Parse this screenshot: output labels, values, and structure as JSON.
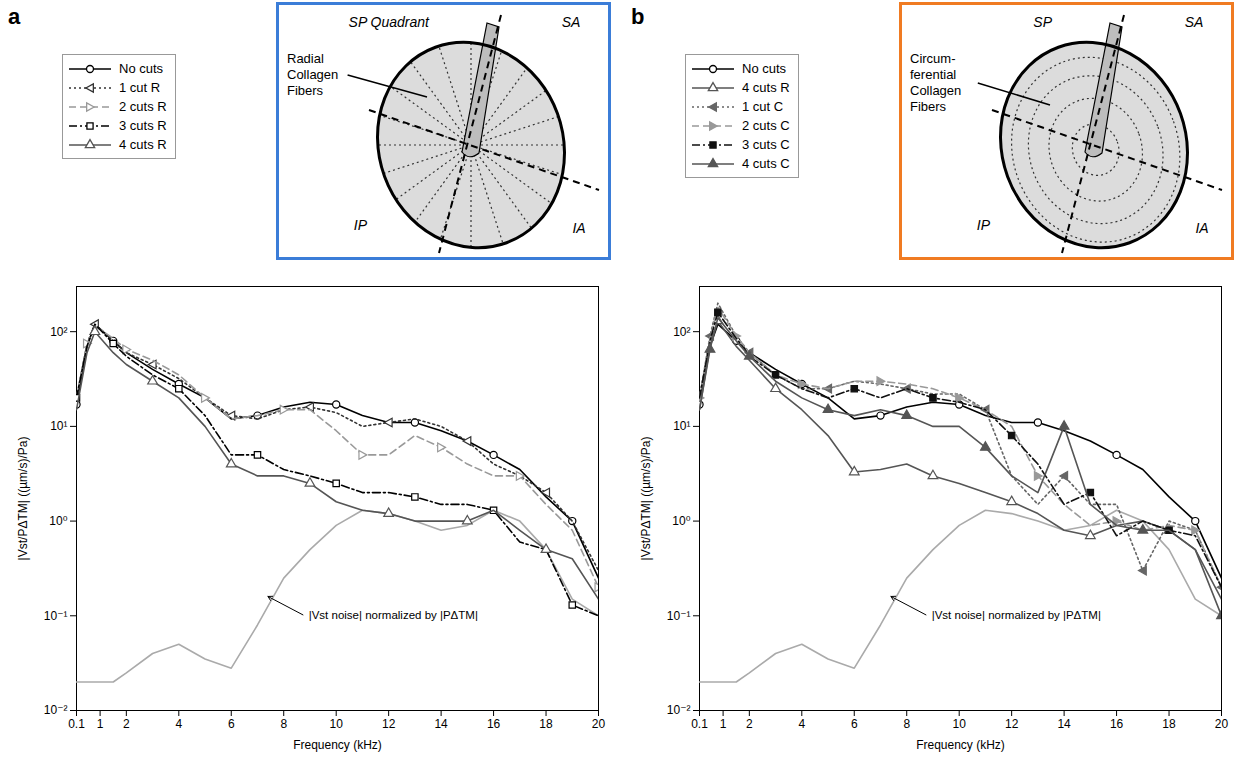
{
  "chart_data": [
    {
      "type": "line",
      "panel_label": "a",
      "color": "#3b7dd8",
      "log": "y",
      "grid": false,
      "legend": "top left",
      "xlabel": "Frequency (kHz)",
      "ylabel": "|Vst/PΔTM| ((µm/s)/Pa)",
      "xlim": [
        0.1,
        20
      ],
      "xticks": [
        0.1,
        1,
        2,
        4,
        6,
        8,
        10,
        12,
        14,
        16,
        18,
        20
      ],
      "ylim": [
        0.01,
        300
      ],
      "yticks": [
        {
          "value": 0.01,
          "label": "10⁻²"
        },
        {
          "value": 0.1,
          "label": "10⁻¹"
        },
        {
          "value": 1,
          "label": "10⁰"
        },
        {
          "value": 10,
          "label": "10¹"
        },
        {
          "value": 100,
          "label": "10²"
        }
      ],
      "x": [
        0.1,
        0.5,
        0.8,
        1.5,
        2,
        3,
        4,
        5,
        6,
        7,
        8,
        9,
        10,
        11,
        12,
        13,
        14,
        15,
        16,
        17,
        18,
        19,
        20
      ],
      "series": [
        {
          "name": "No cuts",
          "color": "#000000",
          "marker": "circle",
          "line_style": "solid",
          "values": [
            17,
            70,
            120,
            80,
            60,
            40,
            28,
            20,
            12,
            13,
            16,
            18,
            17,
            13,
            11,
            11,
            9,
            7,
            5,
            3.5,
            1.8,
            1.0,
            0.25
          ]
        },
        {
          "name": "1 cut R",
          "color": "#333333",
          "marker": "triangle-left",
          "line_style": "dotted",
          "values": [
            20,
            75,
            120,
            80,
            60,
            45,
            32,
            20,
            13,
            12,
            15,
            16,
            14,
            10,
            11,
            12,
            10,
            7,
            4,
            3,
            2,
            1.0,
            0.3
          ]
        },
        {
          "name": "2 cuts R",
          "color": "#999999",
          "marker": "triangle-right",
          "line_style": "dashed",
          "values": [
            20,
            75,
            115,
            85,
            65,
            50,
            35,
            20,
            12,
            13,
            15,
            15,
            9,
            5,
            5,
            8,
            6,
            4,
            3,
            3,
            1.5,
            0.8,
            0.2
          ]
        },
        {
          "name": "3 cuts R",
          "color": "#000000",
          "marker": "square",
          "line_style": "dashdot",
          "values": [
            20,
            70,
            120,
            75,
            55,
            35,
            25,
            13,
            5,
            5,
            3.5,
            3,
            2.5,
            2,
            2,
            1.8,
            1.5,
            1.5,
            1.3,
            0.6,
            0.5,
            0.13,
            0.1
          ]
        },
        {
          "name": "4 cuts R",
          "color": "#555555",
          "marker": "triangle",
          "line_style": "solid",
          "values": [
            15,
            60,
            100,
            60,
            45,
            30,
            20,
            10,
            4,
            3,
            3,
            2.5,
            1.6,
            1.3,
            1.2,
            1,
            1,
            1,
            1.3,
            0.8,
            0.5,
            0.4,
            0.15
          ]
        }
      ],
      "noise": {
        "color": "#aaaaaa",
        "values": [
          0.02,
          0.02,
          0.02,
          0.02,
          0.025,
          0.04,
          0.05,
          0.035,
          0.028,
          0.08,
          0.25,
          0.5,
          0.9,
          1.3,
          1.2,
          1.0,
          0.8,
          0.9,
          1.3,
          1.0,
          0.5,
          0.15,
          0.1
        ]
      },
      "annotation": {
        "text": "|Vst noise| normalized by |PΔTM|",
        "x": 8.8,
        "y": 0.1,
        "x_to": 7.4,
        "y_to": 0.16
      },
      "diagram": {
        "type": "radial",
        "quadrant_labels": [
          "SP Quadrant",
          "SA",
          "IP",
          "IA"
        ],
        "fiber_label": [
          "Radial",
          "Collagen",
          "Fibers"
        ]
      }
    },
    {
      "type": "line",
      "panel_label": "b",
      "color": "#f07b22",
      "log": "y",
      "grid": false,
      "legend": "top left",
      "xlabel": "Frequency (kHz)",
      "ylabel": "|Vst/PΔTM| ((µm/s)/Pa)",
      "xlim": [
        0.1,
        20
      ],
      "xticks": [
        0.1,
        1,
        2,
        4,
        6,
        8,
        10,
        12,
        14,
        16,
        18,
        20
      ],
      "ylim": [
        0.01,
        300
      ],
      "yticks": [
        {
          "value": 0.01,
          "label": "10⁻²"
        },
        {
          "value": 0.1,
          "label": "10⁻¹"
        },
        {
          "value": 1,
          "label": "10⁰"
        },
        {
          "value": 10,
          "label": "10¹"
        },
        {
          "value": 100,
          "label": "10²"
        }
      ],
      "x": [
        0.1,
        0.5,
        0.8,
        1.5,
        2,
        3,
        4,
        5,
        6,
        7,
        8,
        9,
        10,
        11,
        12,
        13,
        14,
        15,
        16,
        17,
        18,
        19,
        20
      ],
      "series": [
        {
          "name": "No cuts",
          "color": "#000000",
          "marker": "circle",
          "line_style": "solid",
          "values": [
            17,
            70,
            120,
            80,
            60,
            40,
            28,
            20,
            12,
            13,
            16,
            18,
            17,
            13,
            11,
            11,
            9,
            7,
            5,
            3.5,
            1.8,
            1.0,
            0.25
          ]
        },
        {
          "name": "4 cuts R",
          "color": "#555555",
          "marker": "triangle",
          "line_style": "solid",
          "values": [
            15,
            70,
            130,
            70,
            50,
            25,
            15,
            8,
            3.3,
            3.5,
            4,
            3,
            2.5,
            2,
            1.6,
            1.2,
            0.8,
            0.7,
            0.9,
            1.0,
            0.8,
            0.5,
            0.15
          ]
        },
        {
          "name": "1 cut C",
          "color": "#666666",
          "marker": "triangle-left-filled",
          "line_style": "dotted",
          "values": [
            20,
            90,
            200,
            90,
            60,
            35,
            25,
            25,
            30,
            28,
            25,
            22,
            22,
            15,
            3,
            1.5,
            3,
            1.5,
            1.5,
            0.3,
            1,
            0.8,
            0.2
          ]
        },
        {
          "name": "2 cuts C",
          "color": "#999999",
          "marker": "triangle-right-filled",
          "line_style": "dashed",
          "values": [
            20,
            85,
            180,
            90,
            60,
            35,
            28,
            25,
            30,
            30,
            28,
            25,
            20,
            15,
            10,
            3,
            1.5,
            0.9,
            1.0,
            0.8,
            0.9,
            0.8,
            0.2
          ]
        },
        {
          "name": "3 cuts C",
          "color": "#111111",
          "marker": "square-filled",
          "line_style": "dashdot",
          "values": [
            20,
            80,
            160,
            85,
            55,
            35,
            25,
            20,
            25,
            20,
            25,
            20,
            18,
            15,
            8,
            4,
            1.5,
            2,
            0.7,
            1.0,
            0.8,
            0.7,
            0.2
          ]
        },
        {
          "name": "4 cuts C",
          "color": "#555555",
          "marker": "triangle-filled",
          "line_style": "solid",
          "values": [
            15,
            65,
            140,
            80,
            55,
            30,
            20,
            15,
            13,
            15,
            13,
            10,
            10,
            6,
            3,
            2,
            10,
            1.5,
            0.9,
            0.8,
            0.8,
            0.5,
            0.1
          ]
        }
      ],
      "noise": {
        "color": "#aaaaaa",
        "values": [
          0.02,
          0.02,
          0.02,
          0.02,
          0.025,
          0.04,
          0.05,
          0.035,
          0.028,
          0.08,
          0.25,
          0.5,
          0.9,
          1.3,
          1.2,
          1.0,
          0.8,
          0.9,
          1.3,
          1.0,
          0.5,
          0.15,
          0.1
        ]
      },
      "annotation": {
        "text": "|Vst noise| normalized by |PΔTM|",
        "x": 8.8,
        "y": 0.1,
        "x_to": 7.4,
        "y_to": 0.16
      },
      "diagram": {
        "type": "circumferential",
        "quadrant_labels": [
          "SP",
          "SA",
          "IP",
          "IA"
        ],
        "fiber_label": [
          "Circum-",
          "ferential",
          "Collagen",
          "Fibers"
        ]
      }
    }
  ]
}
